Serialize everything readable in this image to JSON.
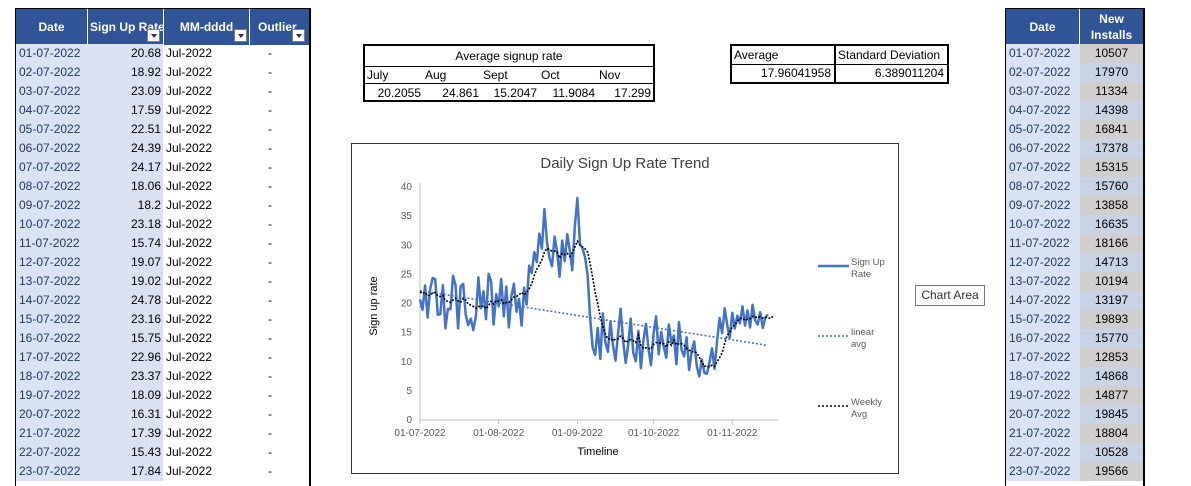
{
  "left_table": {
    "headers": [
      "Date",
      "Sign Up Rate",
      "MM-dddd",
      "Outlier"
    ],
    "rows": [
      [
        "01-07-2022",
        "20.68",
        "Jul-2022",
        "-"
      ],
      [
        "02-07-2022",
        "18.92",
        "Jul-2022",
        "-"
      ],
      [
        "03-07-2022",
        "23.09",
        "Jul-2022",
        "-"
      ],
      [
        "04-07-2022",
        "17.59",
        "Jul-2022",
        "-"
      ],
      [
        "05-07-2022",
        "22.51",
        "Jul-2022",
        "-"
      ],
      [
        "06-07-2022",
        "24.39",
        "Jul-2022",
        "-"
      ],
      [
        "07-07-2022",
        "24.17",
        "Jul-2022",
        "-"
      ],
      [
        "08-07-2022",
        "18.06",
        "Jul-2022",
        "-"
      ],
      [
        "09-07-2022",
        "18.2",
        "Jul-2022",
        "-"
      ],
      [
        "10-07-2022",
        "23.18",
        "Jul-2022",
        "-"
      ],
      [
        "11-07-2022",
        "15.74",
        "Jul-2022",
        "-"
      ],
      [
        "12-07-2022",
        "19.07",
        "Jul-2022",
        "-"
      ],
      [
        "13-07-2022",
        "19.02",
        "Jul-2022",
        "-"
      ],
      [
        "14-07-2022",
        "24.78",
        "Jul-2022",
        "-"
      ],
      [
        "15-07-2022",
        "23.16",
        "Jul-2022",
        "-"
      ],
      [
        "16-07-2022",
        "15.75",
        "Jul-2022",
        "-"
      ],
      [
        "17-07-2022",
        "22.96",
        "Jul-2022",
        "-"
      ],
      [
        "18-07-2022",
        "23.37",
        "Jul-2022",
        "-"
      ],
      [
        "19-07-2022",
        "18.09",
        "Jul-2022",
        "-"
      ],
      [
        "20-07-2022",
        "16.31",
        "Jul-2022",
        "-"
      ],
      [
        "21-07-2022",
        "17.39",
        "Jul-2022",
        "-"
      ],
      [
        "22-07-2022",
        "15.43",
        "Jul-2022",
        "-"
      ],
      [
        "23-07-2022",
        "17.84",
        "Jul-2022",
        "-"
      ]
    ]
  },
  "avg_signup": {
    "title": "Average signup rate",
    "months": [
      "July",
      "Aug",
      "Sept",
      "Oct",
      "Nov"
    ],
    "values": [
      "20.2055",
      "24.861",
      "15.2047",
      "11.9084",
      "17.299"
    ]
  },
  "stats": {
    "average_label": "Average",
    "std_label": "Standard Deviation",
    "average_value": "17.96041958",
    "std_value": "6.389011204"
  },
  "chart_data": {
    "type": "line",
    "title": "Daily Sign Up Rate Trend",
    "xlabel": "Timeline",
    "ylabel": "Sign up rate",
    "ylim": [
      0,
      40
    ],
    "yticks": [
      "0",
      "5",
      "10",
      "15",
      "20",
      "25",
      "30",
      "35",
      "40"
    ],
    "xtick_labels": [
      "01-07-2022",
      "01-08-2022",
      "01-09-2022",
      "01-10-2022",
      "01-11-2022"
    ],
    "xtick_days": [
      0,
      31,
      62,
      92,
      123
    ],
    "legend_position": "right",
    "series": [
      {
        "name": "Sign Up Rate",
        "style": "solid",
        "color": "#4472c4",
        "values": [
          20.68,
          18.92,
          23.09,
          17.59,
          22.51,
          24.39,
          24.17,
          18.06,
          18.2,
          23.18,
          15.74,
          19.07,
          19.02,
          24.78,
          23.16,
          15.75,
          22.96,
          23.37,
          18.09,
          16.31,
          17.39,
          15.43,
          17.84,
          24.5,
          19.2,
          22.1,
          17.3,
          25.1,
          23.8,
          16.4,
          21.6,
          19.5,
          24.2,
          17.8,
          22.9,
          15.9,
          21.3,
          23.4,
          18.6,
          20.8,
          16.2,
          22.7,
          19.8,
          26.5,
          25.2,
          28.8,
          27.1,
          32.0,
          29.4,
          36.2,
          30.5,
          27.8,
          26.4,
          31.5,
          28.9,
          24.6,
          30.8,
          27.3,
          31.9,
          29.1,
          25.7,
          33.4,
          38.1,
          30.2,
          29.5,
          28.0,
          24.9,
          17.6,
          12.4,
          11.2,
          15.8,
          10.5,
          18.3,
          13.4,
          11.7,
          16.9,
          12.8,
          10.2,
          14.7,
          19.1,
          13.6,
          9.8,
          12.9,
          17.4,
          11.5,
          10.1,
          15.3,
          8.9,
          13.7,
          16.5,
          12.2,
          9.4,
          14.9,
          17.8,
          11.3,
          15.1,
          12.6,
          10.7,
          16.4,
          13.3,
          14.5,
          9.6,
          16.8,
          12.1,
          10.9,
          14.2,
          8.6,
          11.8,
          13.5,
          9.2,
          7.5,
          10.4,
          8.1,
          7.9,
          9.8,
          12.3,
          8.8,
          13.6,
          17.5,
          14.9,
          19.2,
          16.3,
          14.1,
          18.4,
          15.7,
          17.9,
          16.6,
          19.5,
          16.2,
          18.8,
          15.9,
          19.8,
          17.1,
          16.4,
          18.5,
          15.8,
          17.6,
          18.1
        ]
      },
      {
        "name": "linear avg",
        "style": "dotted",
        "color": "#4472c4",
        "start": 22.2,
        "end": 12.8
      },
      {
        "name": "Weekly Avg",
        "style": "dotted",
        "color": "#000000",
        "values": [
          22.0,
          21.7,
          21.9,
          21.3,
          21.5,
          21.8,
          21.9,
          21.3,
          21.2,
          21.4,
          20.5,
          20.4,
          20.2,
          20.6,
          20.9,
          20.4,
          20.2,
          20.9,
          20.6,
          19.9,
          19.7,
          19.5,
          19.2,
          19.5,
          19.4,
          19.6,
          19.1,
          19.6,
          20.4,
          19.9,
          20.5,
          20.4,
          20.6,
          19.9,
          20.2,
          20.2,
          20.6,
          21.1,
          21.2,
          21.5,
          21.9,
          21.5,
          21.9,
          22.5,
          23.4,
          24.8,
          25.9,
          26.6,
          27.5,
          28.8,
          29.5,
          29.2,
          29.0,
          29.0,
          28.9,
          27.8,
          28.6,
          28.4,
          28.6,
          28.1,
          28.7,
          29.7,
          30.7,
          30.0,
          29.7,
          29.4,
          28.8,
          26.9,
          24.4,
          21.9,
          20.0,
          17.7,
          16.1,
          14.8,
          13.9,
          14.0,
          13.6,
          13.9,
          13.9,
          14.4,
          14.0,
          13.3,
          13.6,
          13.8,
          13.6,
          13.3,
          14.6,
          12.8,
          12.3,
          12.4,
          12.3,
          12.2,
          13.0,
          13.3,
          13.2,
          13.2,
          13.1,
          12.5,
          13.4,
          12.8,
          13.7,
          12.9,
          13.1,
          13.1,
          12.8,
          12.3,
          12.0,
          11.7,
          11.8,
          11.5,
          10.8,
          9.9,
          9.2,
          9.3,
          9.1,
          9.4,
          9.2,
          10.0,
          10.7,
          11.5,
          13.2,
          14.5,
          15.1,
          16.0,
          16.3,
          17.0,
          17.4,
          17.5,
          17.1,
          17.3,
          17.4,
          17.8,
          17.6,
          17.7,
          17.7,
          17.5,
          17.6,
          17.6,
          17.4,
          17.8
        ]
      }
    ]
  },
  "tooltip": "Chart Area",
  "right_table": {
    "headers": [
      "Date",
      "New Installs"
    ],
    "rows": [
      [
        "01-07-2022",
        "10507"
      ],
      [
        "02-07-2022",
        "17970"
      ],
      [
        "03-07-2022",
        "11334"
      ],
      [
        "04-07-2022",
        "14398"
      ],
      [
        "05-07-2022",
        "16841"
      ],
      [
        "06-07-2022",
        "17378"
      ],
      [
        "07-07-2022",
        "15315"
      ],
      [
        "08-07-2022",
        "15760"
      ],
      [
        "09-07-2022",
        "13858"
      ],
      [
        "10-07-2022",
        "16635"
      ],
      [
        "11-07-2022",
        "18166"
      ],
      [
        "12-07-2022",
        "14713"
      ],
      [
        "13-07-2022",
        "10194"
      ],
      [
        "14-07-2022",
        "13197"
      ],
      [
        "15-07-2022",
        "19893"
      ],
      [
        "16-07-2022",
        "15770"
      ],
      [
        "17-07-2022",
        "12853"
      ],
      [
        "18-07-2022",
        "14868"
      ],
      [
        "19-07-2022",
        "14877"
      ],
      [
        "20-07-2022",
        "19845"
      ],
      [
        "21-07-2022",
        "18804"
      ],
      [
        "22-07-2022",
        "10528"
      ],
      [
        "23-07-2022",
        "19566"
      ]
    ]
  }
}
